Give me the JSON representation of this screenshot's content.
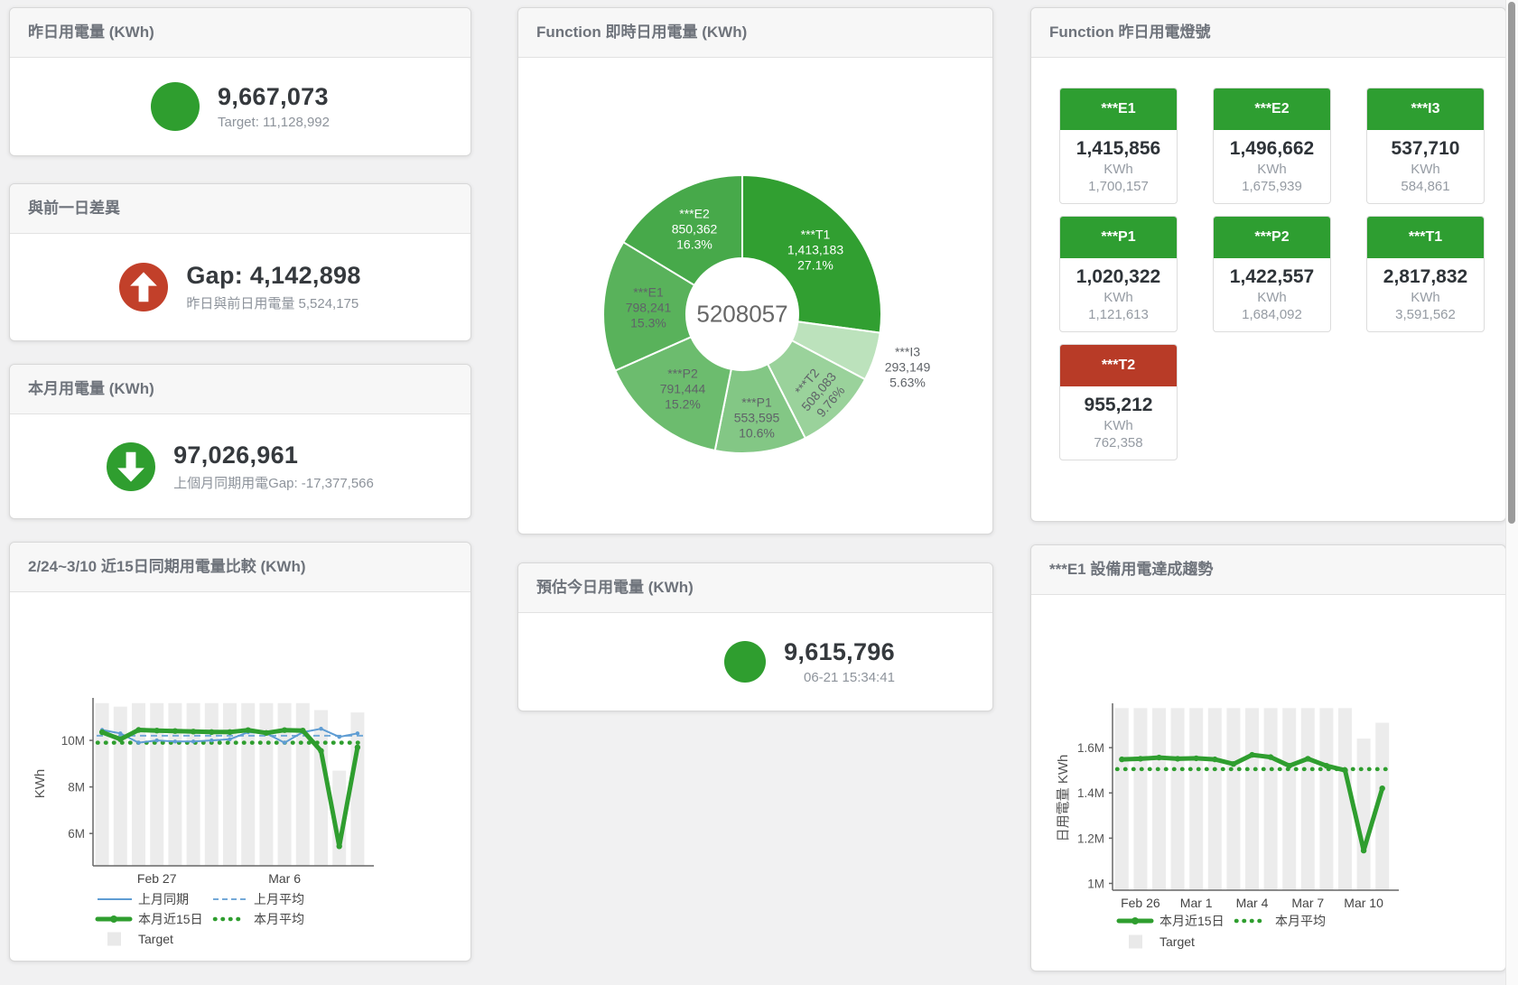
{
  "cards": {
    "yesterday": {
      "title": "昨日用電量 (KWh)",
      "value": "9,667,073",
      "subtitle": "Target: 11,128,992",
      "indicator_color": "#2f9e2f"
    },
    "gap": {
      "title": "與前一日差異",
      "value": "Gap: 4,142,898",
      "subtitle": "昨日與前日用電量 5,524,175",
      "indicator_color": "#c2402a"
    },
    "month": {
      "title": "本月用電量 (KWh)",
      "value": "97,026,961",
      "subtitle": "上個月同期用電Gap: -17,377,566",
      "indicator_color": "#2f9e2f"
    },
    "estimate": {
      "title": "預估今日用電量 (KWh)",
      "value": "9,615,796",
      "subtitle": "06-21 15:34:41",
      "indicator_color": "#2f9e2f"
    },
    "lights": {
      "title": "Function 昨日用電燈號",
      "unit": "KWh",
      "header_colors": {
        "green": "#2e9e31",
        "red": "#b83b27"
      },
      "tiles": [
        {
          "label": "***E1",
          "value": "1,415,856",
          "target": "1,700,157",
          "status": "green"
        },
        {
          "label": "***E2",
          "value": "1,496,662",
          "target": "1,675,939",
          "status": "green"
        },
        {
          "label": "***I3",
          "value": "537,710",
          "target": "584,861",
          "status": "green"
        },
        {
          "label": "***P1",
          "value": "1,020,322",
          "target": "1,121,613",
          "status": "green"
        },
        {
          "label": "***P2",
          "value": "1,422,557",
          "target": "1,684,092",
          "status": "green"
        },
        {
          "label": "***T1",
          "value": "2,817,832",
          "target": "3,591,562",
          "status": "green"
        },
        {
          "label": "***T2",
          "value": "955,212",
          "target": "762,358",
          "status": "red"
        }
      ]
    }
  },
  "chart_data": [
    {
      "id": "donut",
      "type": "pie",
      "title": "Function 即時日用電量 (KWh)",
      "center_total": "5208057",
      "slices": [
        {
          "name": "***T1",
          "value": 1413183,
          "pct": "27.1%",
          "color": "#319f31",
          "text": "#ffffff",
          "label_r": 108
        },
        {
          "name": "***I3",
          "value": 293149,
          "pct": "5.63%",
          "color": "#bce2bc",
          "text": "#5f6368",
          "label_r": 192,
          "outside": true
        },
        {
          "name": "***T2",
          "value": 508083,
          "pct": "9.76%",
          "color": "#9ad29b",
          "text": "#5f6368",
          "label_r": 121,
          "rotate": -50
        },
        {
          "name": "***P1",
          "value": 553595,
          "pct": "10.6%",
          "color": "#83c785",
          "text": "#5f6368",
          "label_r": 116
        },
        {
          "name": "***P2",
          "value": 791444,
          "pct": "15.2%",
          "color": "#6cbc6e",
          "text": "#5f6368",
          "label_r": 106
        },
        {
          "name": "***E1",
          "value": 798241,
          "pct": "15.3%",
          "color": "#59b25b",
          "text": "#5f6368",
          "label_r": 104
        },
        {
          "name": "***E2",
          "value": 850362,
          "pct": "16.3%",
          "color": "#47a94a",
          "text": "#ffffff",
          "label_r": 108
        }
      ]
    },
    {
      "id": "compare15",
      "type": "line+bar",
      "title": "2/24~3/10 近15日同期用電量比較 (KWh)",
      "ylabel": "KWh",
      "ylim": [
        4.61,
        11.67
      ],
      "yticks": [
        {
          "v": 6,
          "label": "6M"
        },
        {
          "v": 8,
          "label": "8M"
        },
        {
          "v": 10,
          "label": "10M"
        }
      ],
      "xticks": [
        {
          "i": 3,
          "label": "Feb 27"
        },
        {
          "i": 10,
          "label": "Mar 6"
        }
      ],
      "unit": "M KWh",
      "series": {
        "target": {
          "label": "Target",
          "color": "#ececec",
          "values": [
            11.6,
            11.45,
            11.6,
            11.6,
            11.6,
            11.6,
            11.6,
            11.6,
            11.6,
            11.6,
            11.6,
            11.6,
            11.3,
            8.7,
            11.2
          ]
        },
        "last_month": {
          "label": "上月同期",
          "color": "#5e9cd3",
          "values": [
            10.45,
            10.3,
            9.9,
            10.0,
            9.95,
            9.95,
            10.0,
            10.05,
            10.35,
            10.3,
            9.9,
            10.35,
            10.5,
            10.15,
            10.3
          ]
        },
        "last_month_avg": {
          "label": "上月平均",
          "color": "#74a9d8",
          "value": 10.2
        },
        "this_month": {
          "label": "本月近15日",
          "color": "#2f9e2f",
          "values": [
            10.35,
            10.05,
            10.45,
            10.42,
            10.4,
            10.38,
            10.36,
            10.36,
            10.44,
            10.32,
            10.44,
            10.42,
            9.55,
            5.45,
            9.7
          ]
        },
        "this_month_avg": {
          "label": "本月平均",
          "color": "#2f9e2f",
          "value": 9.9
        }
      }
    },
    {
      "id": "e1trend",
      "type": "line+bar",
      "title": "***E1 設備用電達成趨勢",
      "ylabel": "日用電量 KWh",
      "ylim": [
        0.97,
        1.78
      ],
      "yticks": [
        {
          "v": 1,
          "label": "1M"
        },
        {
          "v": 1.2,
          "label": "1.2M"
        },
        {
          "v": 1.4,
          "label": "1.4M"
        },
        {
          "v": 1.6,
          "label": "1.6M"
        }
      ],
      "xticks": [
        {
          "i": 1,
          "label": "Feb 26"
        },
        {
          "i": 4,
          "label": "Mar 1"
        },
        {
          "i": 7,
          "label": "Mar 4"
        },
        {
          "i": 10,
          "label": "Mar 7"
        },
        {
          "i": 13,
          "label": "Mar 10"
        }
      ],
      "unit": "M KWh",
      "series": {
        "target": {
          "label": "Target",
          "color": "#ececec",
          "values": [
            1.775,
            1.775,
            1.775,
            1.775,
            1.775,
            1.775,
            1.775,
            1.775,
            1.775,
            1.775,
            1.775,
            1.775,
            1.775,
            1.64,
            1.71
          ]
        },
        "this_month": {
          "label": "本月近15日",
          "color": "#2f9e2f",
          "values": [
            1.548,
            1.551,
            1.556,
            1.551,
            1.553,
            1.548,
            1.528,
            1.568,
            1.558,
            1.52,
            1.551,
            1.52,
            1.5,
            1.145,
            1.42
          ]
        },
        "this_month_avg": {
          "label": "本月平均",
          "color": "#2f9e2f",
          "value": 1.505
        }
      }
    }
  ]
}
